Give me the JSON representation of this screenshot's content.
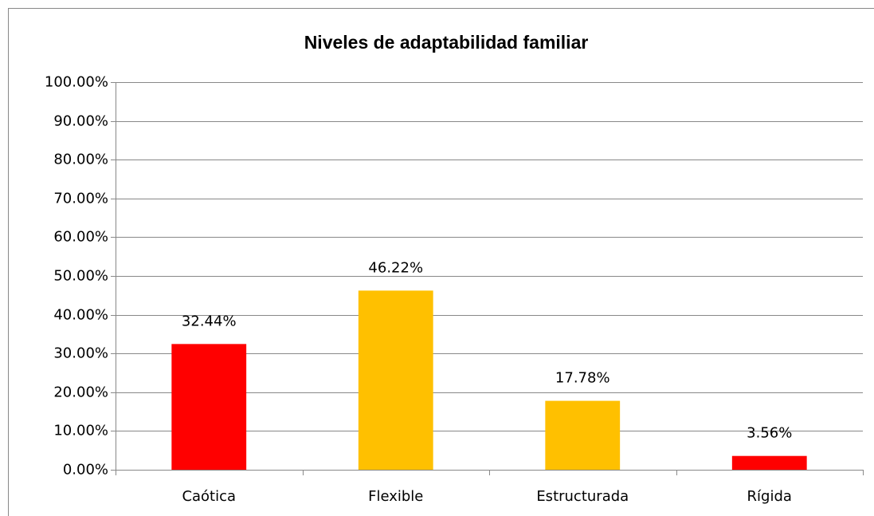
{
  "chart_data": {
    "type": "bar",
    "title": "Niveles de adaptabilidad familiar",
    "categories": [
      "Caótica",
      "Flexible",
      "Estructurada",
      "Rígida"
    ],
    "values": [
      32.44,
      46.22,
      17.78,
      3.56
    ],
    "value_labels": [
      "32.44%",
      "46.22%",
      "17.78%",
      "3.56%"
    ],
    "colors": [
      "#ff0000",
      "#ffc000",
      "#ffc000",
      "#ff0000"
    ],
    "ylim": [
      0,
      100
    ],
    "yticks": [
      {
        "value": 0,
        "label": "0.00%"
      },
      {
        "value": 10,
        "label": "10.00%"
      },
      {
        "value": 20,
        "label": "20.00%"
      },
      {
        "value": 30,
        "label": "30.00%"
      },
      {
        "value": 40,
        "label": "40.00%"
      },
      {
        "value": 50,
        "label": "50.00%"
      },
      {
        "value": 60,
        "label": "60.00%"
      },
      {
        "value": 70,
        "label": "70.00%"
      },
      {
        "value": 80,
        "label": "80.00%"
      },
      {
        "value": 90,
        "label": "90.00%"
      },
      {
        "value": 100,
        "label": "100.00%"
      }
    ],
    "grid": true
  }
}
